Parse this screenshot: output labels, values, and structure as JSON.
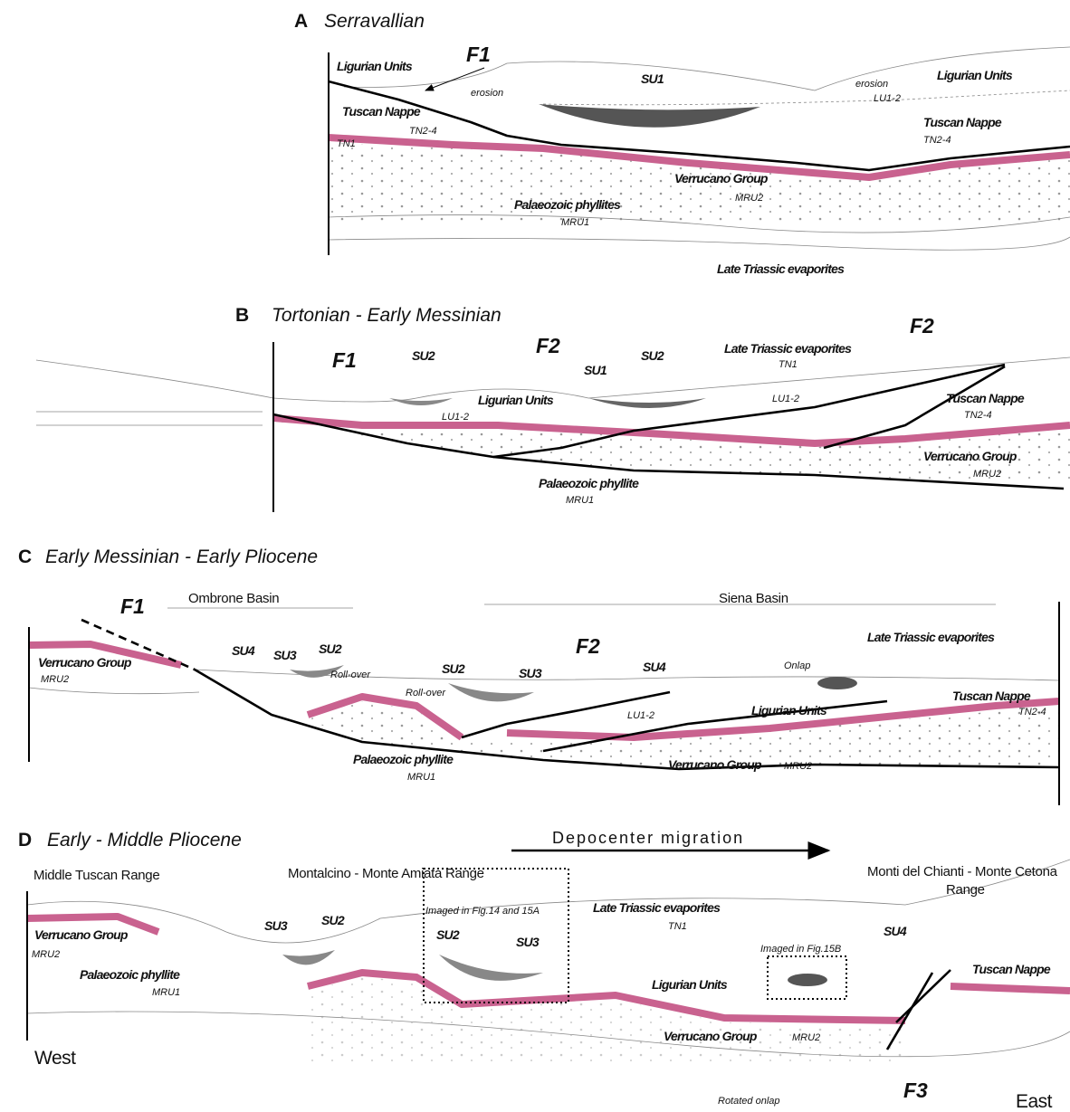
{
  "panels": [
    {
      "letter": "A",
      "title": "Serravallian",
      "labels": [
        "F1",
        "Ligurian Units",
        "erosion",
        "SU1",
        "erosion",
        "Ligurian Units",
        "LU1-2",
        "Tuscan Nappe",
        "TN2-4",
        "TN1",
        "Tuscan Nappe",
        "TN2-4",
        "Verrucano Group",
        "MRU2",
        "Palaeozoic phyllites",
        "MRU1",
        "Late Triassic evaporites"
      ]
    },
    {
      "letter": "B",
      "title": "Tortonian - Early Messinian",
      "labels": [
        "F1",
        "SU2",
        "F2",
        "SU1",
        "SU2",
        "Late Triassic evaporites",
        "TN1",
        "F2",
        "Ligurian Units",
        "LU1-2",
        "LU1-2",
        "Tuscan Nappe",
        "TN2-4",
        "Verrucano Group",
        "MRU2",
        "Palaeozoic phyllite",
        "MRU1"
      ]
    },
    {
      "letter": "C",
      "title": "Early Messinian - Early Pliocene",
      "labels": [
        "F1",
        "Ombrone Basin",
        "Siena Basin",
        "Verrucano Group",
        "MRU2",
        "SU4",
        "SU3",
        "SU2",
        "Roll-over",
        "Roll-over",
        "SU2",
        "SU3",
        "F2",
        "SU4",
        "Onlap",
        "Late Triassic evaporites",
        "Tuscan Nappe",
        "TN2-4",
        "LU1-2",
        "Ligurian Units",
        "Palaeozoic phyllite",
        "MRU1",
        "Verrucano Group",
        "MRU2"
      ]
    },
    {
      "letter": "D",
      "title": "Early - Middle Pliocene",
      "labels": [
        "Depocenter migration",
        "Middle Tuscan Range",
        "Montalcino - Monte Amiata Range",
        "Monti del Chianti - Monte Cetona",
        "Range",
        "Verrucano Group",
        "MRU2",
        "Palaeozoic phyllite",
        "MRU1",
        "SU3",
        "SU2",
        "Imaged in Fig.14 and 15A",
        "SU2",
        "SU3",
        "Late Triassic evaporites",
        "TN1",
        "Imaged in Fig.15B",
        "SU4",
        "Tuscan Nappe",
        "Ligurian Units",
        "Verrucano Group",
        "MRU2",
        "West",
        "Rotated onlap",
        "F3",
        "East"
      ]
    }
  ]
}
